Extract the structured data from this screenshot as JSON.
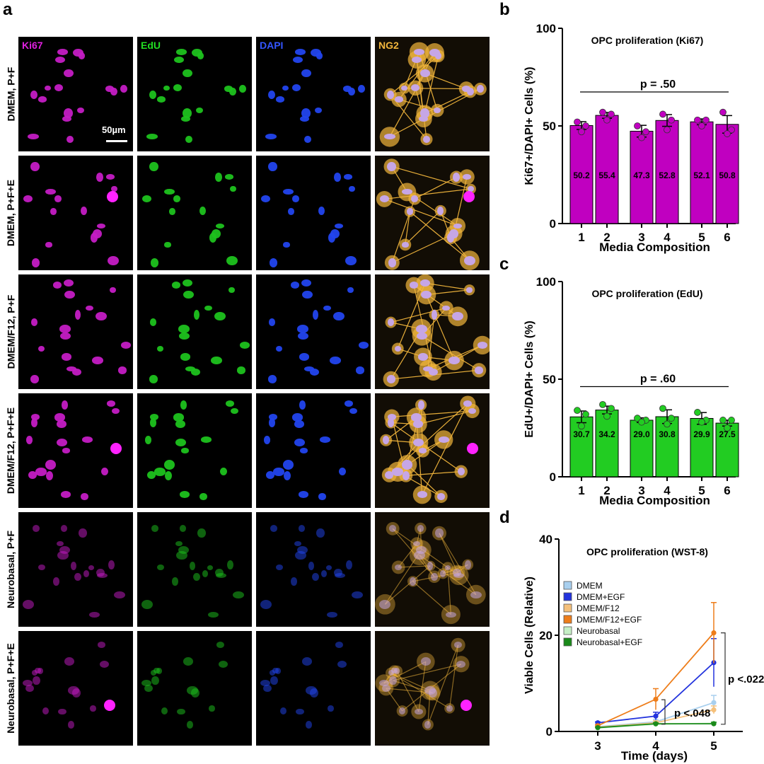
{
  "panels": {
    "a": "a",
    "b": "b",
    "c": "c",
    "d": "d"
  },
  "micrograph": {
    "channels": [
      {
        "name": "Ki67",
        "color": "#e020e0",
        "nuclei_color": "#c41cc4"
      },
      {
        "name": "EdU",
        "color": "#22dd22",
        "nuclei_color": "#1ec21e"
      },
      {
        "name": "DAPI",
        "color": "#3355ff",
        "nuclei_color": "#2244ee"
      },
      {
        "name": "NG2",
        "color": "#f2b63c",
        "nuclei_color": "#c6a6e6"
      }
    ],
    "conditions": [
      "DMEM, P+F",
      "DMEM, P+F+E",
      "DMEM/F12, P+F",
      "DMEM/F12, P+F+E",
      "Neurobasal, P+F",
      "Neurobasal, P+F+E"
    ],
    "scale_bar": "50µm"
  },
  "chart_data": [
    {
      "type": "bar",
      "title": "OPC proliferation (Ki67)",
      "xlabel": "Media Composition",
      "ylabel": "Ki67+/DAPI+ Cells (%)",
      "ylim": [
        0,
        100
      ],
      "yticks": [
        0,
        50,
        100
      ],
      "categories": [
        "1",
        "2",
        "3",
        "4",
        "5",
        "6"
      ],
      "values": [
        50.2,
        55.4,
        47.3,
        52.8,
        52.1,
        50.8
      ],
      "value_labels": [
        "50.2",
        "55.4",
        "47.3",
        "52.8",
        "52.1",
        "50.8"
      ],
      "sem": [
        2.0,
        1.5,
        3.0,
        3.0,
        1.5,
        4.5
      ],
      "points": [
        [
          52,
          50,
          47
        ],
        [
          57,
          56,
          53
        ],
        [
          50,
          47,
          44
        ],
        [
          56,
          53,
          48
        ],
        [
          53,
          53,
          50
        ],
        [
          57,
          48,
          46
        ]
      ],
      "bar_color": "#c000c0",
      "annotation": "p = .50"
    },
    {
      "type": "bar",
      "title": "OPC proliferation (EdU)",
      "xlabel": "Media Composition",
      "ylabel": "EdU+/DAPI+ Cells (%)",
      "ylim": [
        0,
        100
      ],
      "yticks": [
        0,
        50,
        100
      ],
      "categories": [
        "1",
        "2",
        "3",
        "4",
        "5",
        "6"
      ],
      "values": [
        30.7,
        34.2,
        29.0,
        30.8,
        29.9,
        27.5
      ],
      "value_labels": [
        "30.7",
        "34.2",
        "29.0",
        "30.8",
        "29.9",
        "27.5"
      ],
      "sem": [
        3.0,
        2.0,
        1.2,
        3.5,
        3.0,
        1.5
      ],
      "points": [
        [
          34,
          32,
          26
        ],
        [
          37,
          35,
          31
        ],
        [
          30,
          29,
          28
        ],
        [
          35,
          30,
          27
        ],
        [
          33,
          29,
          28
        ],
        [
          29,
          29,
          25
        ]
      ],
      "bar_color": "#22cc22",
      "annotation": "p = .60"
    },
    {
      "type": "line",
      "title": "OPC proliferation (WST-8)",
      "xlabel": "Time (days)",
      "ylabel": "Viable Cells (Relative)",
      "ylim": [
        0,
        40
      ],
      "yticks": [
        0,
        20,
        40
      ],
      "x": [
        3,
        4,
        5
      ],
      "series": [
        {
          "name": "DMEM",
          "values": [
            1.0,
            2.0,
            6.0
          ],
          "err": [
            0.2,
            0.5,
            1.5
          ],
          "color": "#a8cfee"
        },
        {
          "name": "DMEM+EGF",
          "values": [
            1.8,
            3.2,
            14.3
          ],
          "err": [
            0.2,
            0.8,
            5.0
          ],
          "color": "#2233dd"
        },
        {
          "name": "DMEM/F12",
          "values": [
            0.9,
            1.8,
            4.5
          ],
          "err": [
            0.2,
            0.4,
            0.8
          ],
          "color": "#f5c07a"
        },
        {
          "name": "DMEM/F12+EGF",
          "values": [
            1.2,
            6.7,
            20.5
          ],
          "err": [
            0.2,
            2.2,
            6.3
          ],
          "color": "#ee7d1a"
        },
        {
          "name": "Neurobasal",
          "values": [
            0.7,
            1.5,
            1.7
          ],
          "err": [
            0.1,
            0.2,
            0.3
          ],
          "color": "#c6efc6"
        },
        {
          "name": "Neurobasal+EGF",
          "values": [
            0.8,
            1.6,
            1.6
          ],
          "err": [
            0.1,
            0.2,
            0.3
          ],
          "color": "#1a8a1a"
        }
      ],
      "annotations": [
        "p <.048",
        "p <.022"
      ]
    }
  ]
}
